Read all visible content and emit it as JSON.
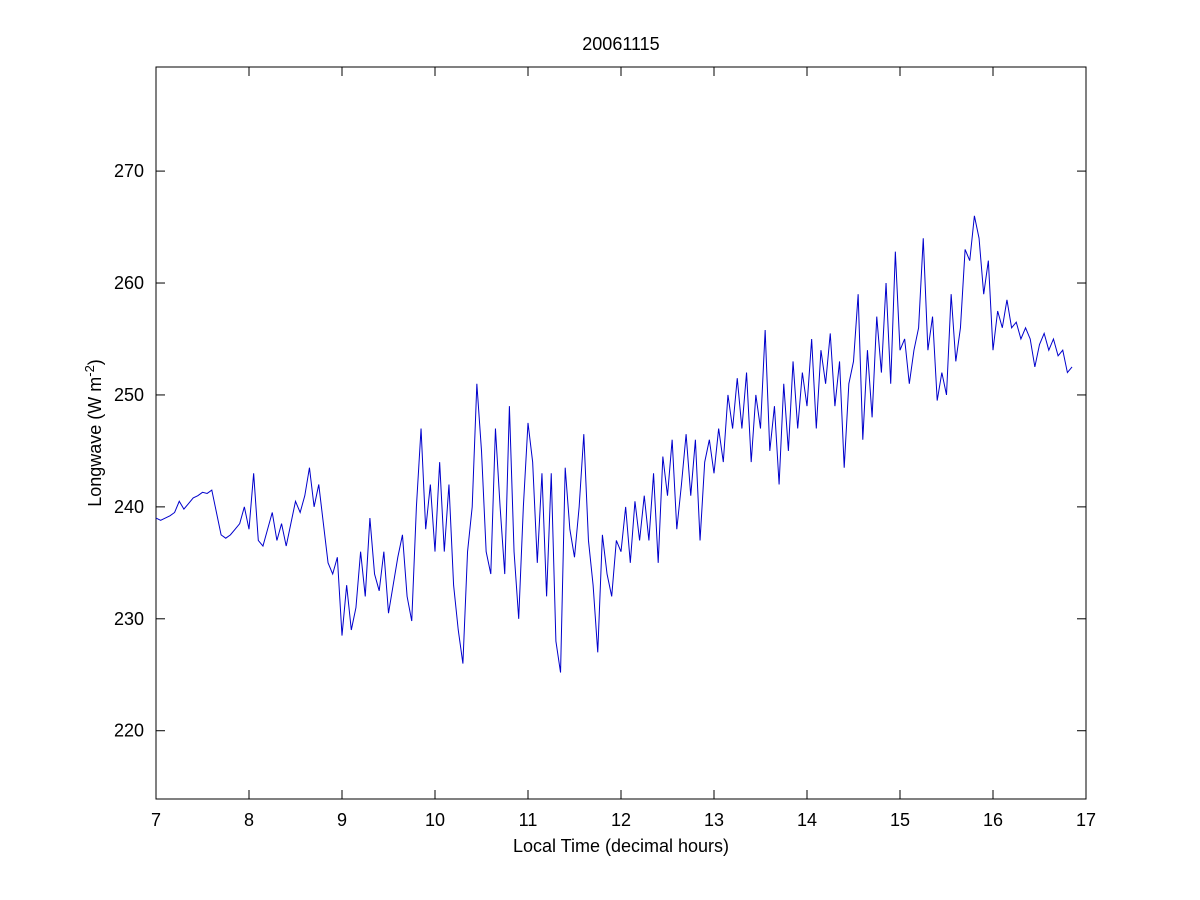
{
  "chart_data": {
    "type": "line",
    "title": "20061115",
    "xlabel": "Local Time (decimal hours)",
    "ylabel": "Longwave (W m",
    "ylabel_superscript": "-2",
    "ylabel_end": ")",
    "xlim": [
      7,
      17
    ],
    "xticks": [
      7,
      8,
      9,
      10,
      11,
      12,
      13,
      14,
      15,
      16,
      17
    ],
    "ylim": [
      213.9,
      279.3
    ],
    "yticks": [
      220,
      230,
      240,
      250,
      260,
      270
    ],
    "grid": false,
    "x": [
      7.0,
      7.05,
      7.1,
      7.15,
      7.2,
      7.25,
      7.3,
      7.35,
      7.4,
      7.45,
      7.5,
      7.55,
      7.6,
      7.65,
      7.7,
      7.75,
      7.8,
      7.85,
      7.9,
      7.95,
      8.0,
      8.05,
      8.1,
      8.15,
      8.2,
      8.25,
      8.3,
      8.35,
      8.4,
      8.45,
      8.5,
      8.55,
      8.6,
      8.65,
      8.7,
      8.75,
      8.8,
      8.85,
      8.9,
      8.95,
      9.0,
      9.05,
      9.1,
      9.15,
      9.2,
      9.25,
      9.3,
      9.35,
      9.4,
      9.45,
      9.5,
      9.55,
      9.6,
      9.65,
      9.7,
      9.75,
      9.8,
      9.85,
      9.9,
      9.95,
      10.0,
      10.05,
      10.1,
      10.15,
      10.2,
      10.25,
      10.3,
      10.35,
      10.4,
      10.45,
      10.5,
      10.55,
      10.6,
      10.65,
      10.7,
      10.75,
      10.8,
      10.85,
      10.9,
      10.95,
      11.0,
      11.05,
      11.1,
      11.15,
      11.2,
      11.25,
      11.3,
      11.35,
      11.4,
      11.45,
      11.5,
      11.55,
      11.6,
      11.65,
      11.7,
      11.75,
      11.8,
      11.85,
      11.9,
      11.95,
      12.0,
      12.05,
      12.1,
      12.15,
      12.2,
      12.25,
      12.3,
      12.35,
      12.4,
      12.45,
      12.5,
      12.55,
      12.6,
      12.65,
      12.7,
      12.75,
      12.8,
      12.85,
      12.9,
      12.95,
      13.0,
      13.05,
      13.1,
      13.15,
      13.2,
      13.25,
      13.3,
      13.35,
      13.4,
      13.45,
      13.5,
      13.55,
      13.6,
      13.65,
      13.7,
      13.75,
      13.8,
      13.85,
      13.9,
      13.95,
      14.0,
      14.05,
      14.1,
      14.15,
      14.2,
      14.25,
      14.3,
      14.35,
      14.4,
      14.45,
      14.5,
      14.55,
      14.6,
      14.65,
      14.7,
      14.75,
      14.8,
      14.85,
      14.9,
      14.95,
      15.0,
      15.05,
      15.1,
      15.15,
      15.2,
      15.25,
      15.3,
      15.35,
      15.4,
      15.45,
      15.5,
      15.55,
      15.6,
      15.65,
      15.7,
      15.75,
      15.8,
      15.85,
      15.9,
      15.95,
      16.0,
      16.05,
      16.1,
      16.15,
      16.2,
      16.25,
      16.3,
      16.35,
      16.4,
      16.45,
      16.5,
      16.55,
      16.6,
      16.65,
      16.7,
      16.75,
      16.8,
      16.85
    ],
    "series": [
      {
        "color": "#0000cc",
        "values": [
          239,
          238.8,
          239,
          239.2,
          239.5,
          240.5,
          239.8,
          240.3,
          240.8,
          241,
          241.3,
          241.2,
          241.5,
          239.5,
          237.5,
          237.2,
          237.5,
          238,
          238.5,
          240,
          238,
          243,
          237,
          236.5,
          238,
          239.5,
          237,
          238.5,
          236.5,
          238.5,
          240.5,
          239.5,
          241,
          243.5,
          240,
          242,
          238.5,
          235,
          234,
          235.5,
          228.5,
          233,
          229,
          231,
          236,
          232,
          239,
          234,
          232.5,
          236,
          230.5,
          233,
          235.5,
          237.5,
          232,
          229.8,
          240,
          247,
          238,
          242,
          236,
          244,
          236,
          242,
          233,
          229,
          226,
          236,
          240,
          251,
          245,
          236,
          234,
          247,
          240,
          234,
          249,
          236,
          230,
          240,
          247.5,
          244,
          235,
          243,
          232,
          243,
          228,
          225.2,
          243.5,
          238,
          235.5,
          240,
          246.5,
          237,
          233,
          227,
          237.5,
          234,
          232,
          237,
          236,
          240,
          235,
          240.5,
          237,
          241,
          237,
          243,
          235,
          244.5,
          241,
          246,
          238,
          242,
          246.5,
          241,
          246,
          237,
          244,
          246,
          243,
          247,
          244,
          250,
          247,
          251.5,
          247,
          252,
          244,
          250,
          247,
          255.8,
          245,
          249,
          242,
          251,
          245,
          253,
          247,
          252,
          249,
          255,
          247,
          254,
          251,
          255.5,
          249,
          253,
          243.5,
          251,
          253,
          259,
          246,
          254,
          248,
          257,
          252,
          260,
          251,
          262.8,
          254,
          255,
          251,
          254,
          256,
          264,
          254,
          257,
          249.5,
          252,
          250,
          259,
          253,
          256,
          263,
          262,
          266,
          264,
          259,
          262,
          254,
          257.5,
          256,
          258.5,
          256,
          256.5,
          255,
          256,
          255,
          252.5,
          254.5,
          255.5,
          254,
          255,
          253.5,
          254,
          252,
          252.5
        ]
      }
    ]
  }
}
